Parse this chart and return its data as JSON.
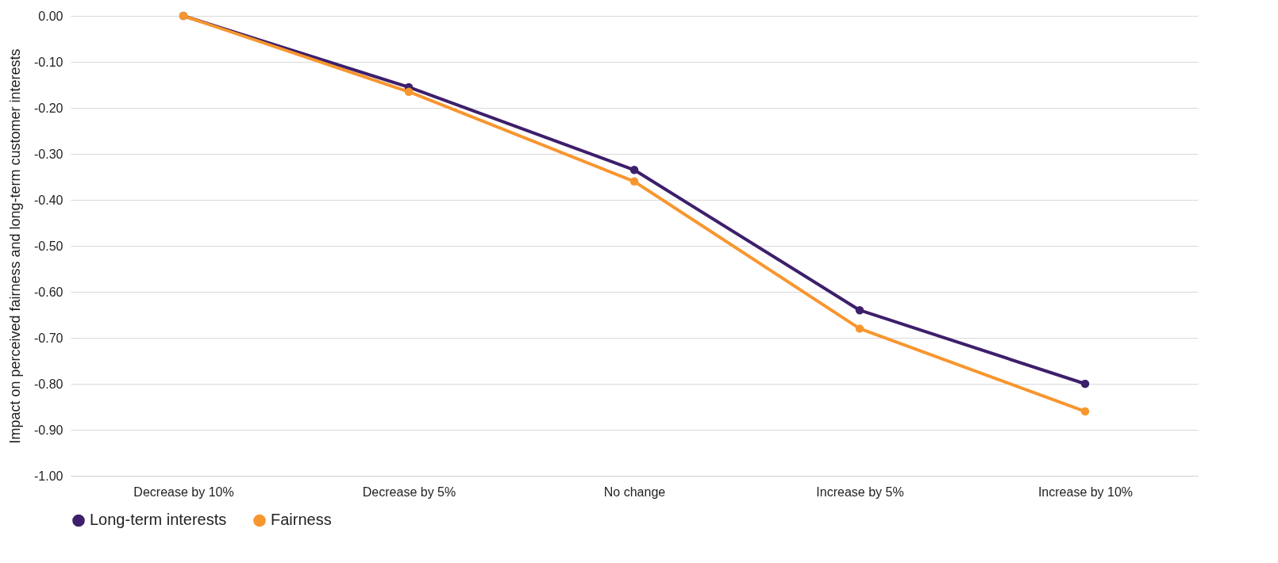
{
  "chart_data": {
    "type": "line",
    "ylabel": "Impact on perceived fairness and long-term customer interests",
    "categories": [
      "Decrease by 10%",
      "Decrease by 5%",
      "No change",
      "Increase by 5%",
      "Increase by 10%"
    ],
    "series": [
      {
        "name": "Long-term interests",
        "color": "#3d1f6b",
        "values": [
          0,
          -0.155,
          -0.335,
          -0.64,
          -0.8
        ]
      },
      {
        "name": "Fairness",
        "color": "#f7962f",
        "values": [
          0,
          -0.165,
          -0.36,
          -0.68,
          -0.86
        ]
      }
    ],
    "ylim": [
      -1,
      0
    ],
    "yticks": [
      {
        "value": -1,
        "label": "-1.00"
      },
      {
        "value": -0.9,
        "label": "-0.90"
      },
      {
        "value": -0.8,
        "label": "-0.80"
      },
      {
        "value": -0.7,
        "label": "-0.70"
      },
      {
        "value": -0.6,
        "label": "-0.60"
      },
      {
        "value": -0.5,
        "label": "-0.50"
      },
      {
        "value": -0.4,
        "label": "-0.40"
      },
      {
        "value": -0.3,
        "label": "-0.30"
      },
      {
        "value": -0.2,
        "label": "-0.20"
      },
      {
        "value": -0.1,
        "label": "-0.10"
      },
      {
        "value": 0,
        "label": "0.00"
      }
    ],
    "grid": "y",
    "legend": "bottom",
    "marker": "circle",
    "line_style": "solid"
  }
}
